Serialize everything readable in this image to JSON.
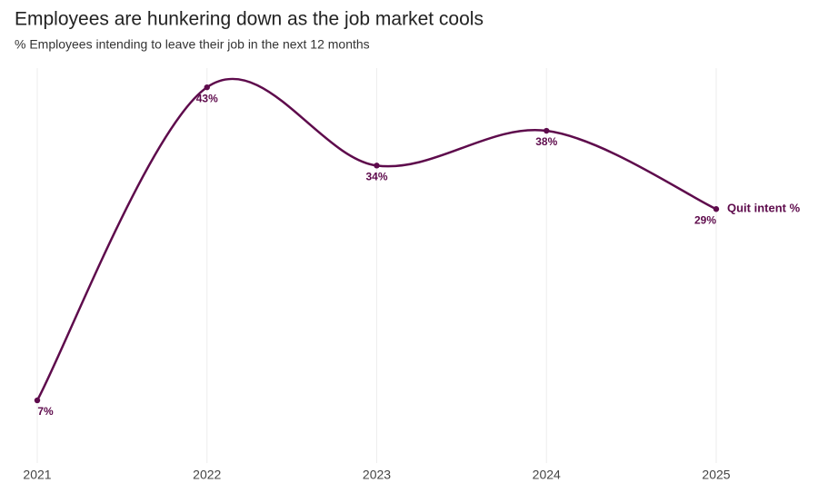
{
  "chart_data": {
    "type": "line",
    "title": "Employees are hunkering down as the job market cools",
    "subtitle": "% Employees intending to leave their job in the next 12 months",
    "categories": [
      "2021",
      "2022",
      "2023",
      "2024",
      "2025"
    ],
    "series": [
      {
        "name": "Quit intent %",
        "color": "#5e0b4c",
        "values": [
          7,
          43,
          34,
          38,
          29
        ],
        "value_labels": [
          "7%",
          "43%",
          "34%",
          "38%",
          "29%"
        ]
      }
    ],
    "ylim": [
      0,
      45
    ],
    "grid": true
  }
}
